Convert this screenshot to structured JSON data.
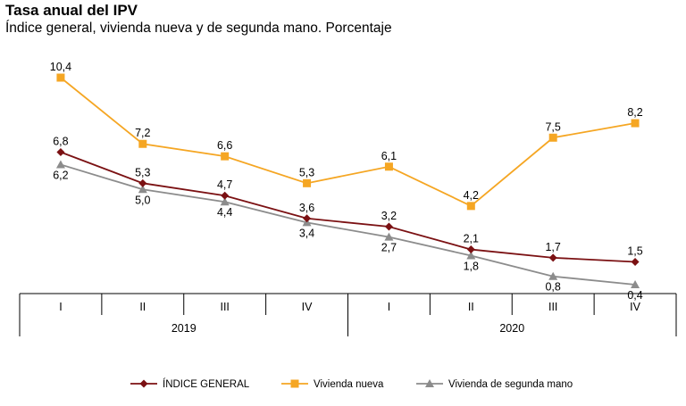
{
  "chart_data": {
    "type": "line",
    "title": "Tasa anual del IPV",
    "subtitle": "Índice general, vivienda nueva y de segunda mano. Porcentaje",
    "categories": [
      "I",
      "II",
      "III",
      "IV",
      "I",
      "II",
      "III",
      "IV"
    ],
    "years": [
      {
        "label": "2019",
        "span": [
          0,
          3
        ]
      },
      {
        "label": "2020",
        "span": [
          4,
          7
        ]
      }
    ],
    "ylim": [
      0,
      11
    ],
    "series": [
      {
        "name": "ÍNDICE GENERAL",
        "color": "#7b1113",
        "marker": "diamond",
        "values": [
          6.8,
          5.3,
          4.7,
          3.6,
          3.2,
          2.1,
          1.7,
          1.5
        ],
        "labels": [
          "6,8",
          "5,3",
          "4,7",
          "3,6",
          "3,2",
          "2,1",
          "1,7",
          "1,5"
        ]
      },
      {
        "name": "Vivienda nueva",
        "color": "#f5a623",
        "marker": "square",
        "values": [
          10.4,
          7.2,
          6.6,
          5.3,
          6.1,
          4.2,
          7.5,
          8.2
        ],
        "labels": [
          "10,4",
          "7,2",
          "6,6",
          "5,3",
          "6,1",
          "4,2",
          "7,5",
          "8,2"
        ]
      },
      {
        "name": "Vivienda de segunda mano",
        "color": "#8c8c8c",
        "marker": "triangle",
        "values": [
          6.2,
          5.0,
          4.4,
          3.4,
          2.7,
          1.8,
          0.8,
          0.4
        ],
        "labels": [
          "6,2",
          "5,0",
          "4,4",
          "3,4",
          "2,7",
          "1,8",
          "0,8",
          "0,4"
        ]
      }
    ]
  }
}
